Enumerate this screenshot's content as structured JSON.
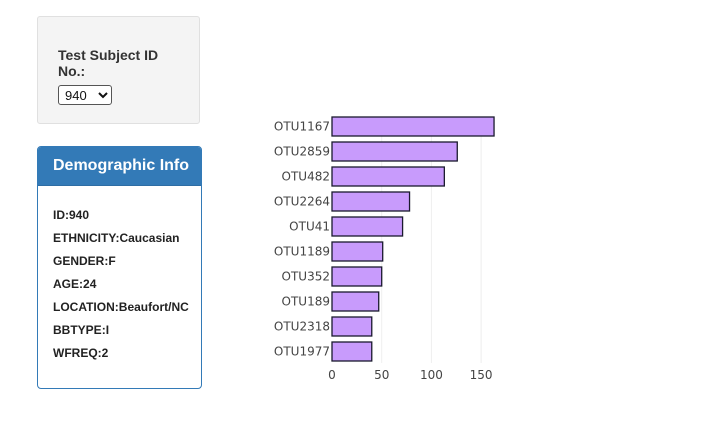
{
  "selector": {
    "label": "Test Subject ID No.:",
    "selected_value": "940"
  },
  "demographics": {
    "title": "Demographic Info",
    "rows": [
      {
        "key": "ID",
        "value": "940"
      },
      {
        "key": "ETHNICITY",
        "value": "Caucasian"
      },
      {
        "key": "GENDER",
        "value": "F"
      },
      {
        "key": "AGE",
        "value": "24"
      },
      {
        "key": "LOCATION",
        "value": "Beaufort/NC"
      },
      {
        "key": "BBTYPE",
        "value": "I"
      },
      {
        "key": "WFREQ",
        "value": "2"
      }
    ]
  },
  "colors": {
    "panel_accent": "#337ab7",
    "bar_fill": "#c89bfc",
    "bar_stroke": "#1a1a2e"
  },
  "chart_data": {
    "type": "bar",
    "orientation": "horizontal",
    "categories": [
      "OTU1167",
      "OTU2859",
      "OTU482",
      "OTU2264",
      "OTU41",
      "OTU1189",
      "OTU352",
      "OTU189",
      "OTU2318",
      "OTU1977"
    ],
    "values": [
      163,
      126,
      113,
      78,
      71,
      51,
      50,
      47,
      40,
      40
    ],
    "xlim": [
      0,
      170
    ],
    "xticks": [
      0,
      50,
      100,
      150
    ],
    "grid": true,
    "title": "",
    "xlabel": "",
    "ylabel": ""
  }
}
